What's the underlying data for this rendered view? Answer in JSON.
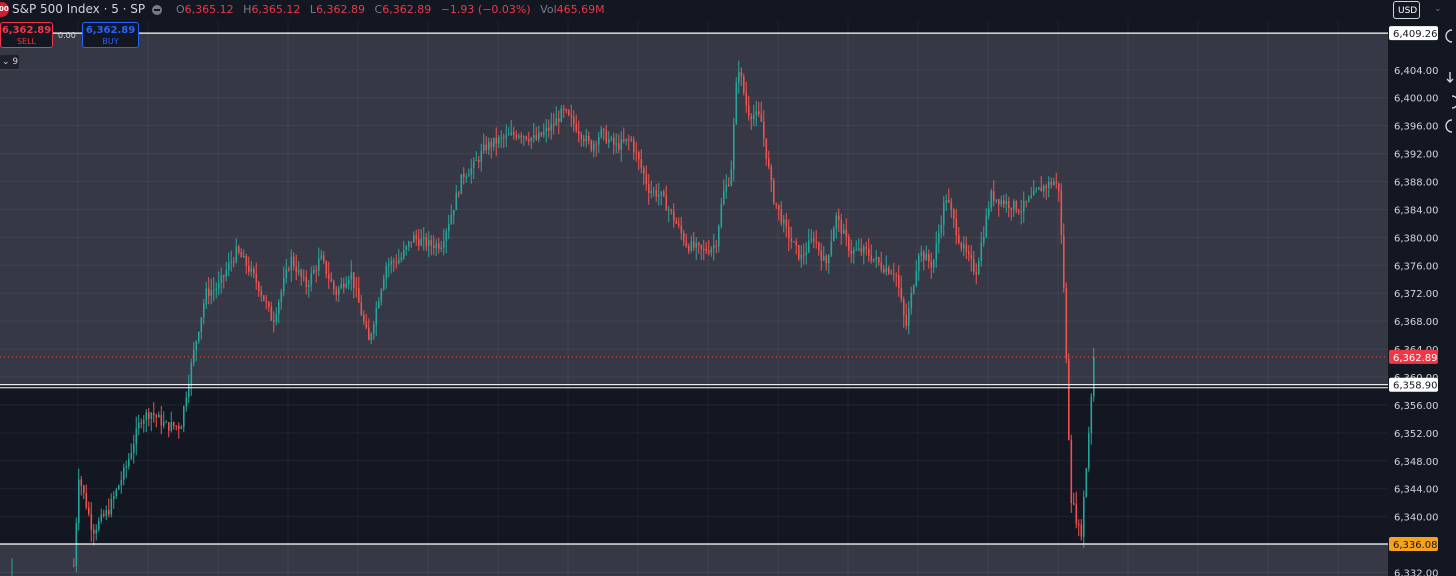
{
  "header": {
    "logo_text": "500",
    "symbol": "S&P 500 Index · 5 · SP",
    "ohlc": [
      {
        "k": "O",
        "v": "6,365.12"
      },
      {
        "k": "H",
        "v": "6,365.12"
      },
      {
        "k": "L",
        "v": "6,362.89"
      },
      {
        "k": "C",
        "v": "6,362.89"
      }
    ],
    "change": "−1.93 (−0.03%)",
    "vol_label": "Vol",
    "vol_value": "465.69M"
  },
  "trade": {
    "sell_price": "6,362.89",
    "sell_label": "SELL",
    "spread": "0.00",
    "buy_price": "6,362.89",
    "buy_label": "BUY"
  },
  "indicator_toggle": "9",
  "currency": "USD",
  "colors": {
    "up": "#26a69a",
    "down": "#ef5350",
    "bg": "#131722",
    "zone": "#434651",
    "grid": "#1e222d"
  },
  "chart_data": {
    "type": "candlestick",
    "title": "S&P 500 Index · 5 · SP",
    "xlabel": "",
    "ylabel": "",
    "ylim": [
      6331.5,
      6414
    ],
    "y_ticks": [
      "6,332.00",
      "6,336.00",
      "6,340.00",
      "6,344.00",
      "6,348.00",
      "6,352.00",
      "6,356.00",
      "6,360.00",
      "6,364.00",
      "6,368.00",
      "6,372.00",
      "6,376.00",
      "6,380.00",
      "6,384.00",
      "6,388.00",
      "6,392.00",
      "6,396.00",
      "6,400.00",
      "6,404.00",
      "6,409.26"
    ],
    "levels": [
      {
        "price": 6409.26,
        "label": "6,409.26",
        "style": "white"
      },
      {
        "price": 6358.9,
        "label": "6,358.90",
        "style": "white"
      },
      {
        "price": 6336.08,
        "label": "6,336.08",
        "style": "orange"
      },
      {
        "price": 6362.89,
        "label": "6,362.89",
        "style": "last"
      }
    ],
    "zones": [
      {
        "from": 6358.9,
        "to": 6409.26
      },
      {
        "from": 6331.5,
        "to": 6336.08
      }
    ],
    "series": [
      {
        "name": "S&P 500 Index",
        "path": [
          [
            0,
            6333
          ],
          [
            73,
            6333
          ],
          [
            78,
            6346
          ],
          [
            92,
            6338
          ],
          [
            108,
            6341
          ],
          [
            125,
            6347
          ],
          [
            140,
            6354
          ],
          [
            150,
            6355
          ],
          [
            165,
            6353
          ],
          [
            180,
            6353
          ],
          [
            187,
            6359
          ],
          [
            195,
            6365
          ],
          [
            205,
            6372
          ],
          [
            218,
            6373
          ],
          [
            228,
            6376
          ],
          [
            236,
            6378
          ],
          [
            246,
            6376
          ],
          [
            258,
            6373
          ],
          [
            272,
            6368
          ],
          [
            290,
            6377
          ],
          [
            305,
            6373
          ],
          [
            320,
            6377
          ],
          [
            335,
            6372
          ],
          [
            350,
            6375
          ],
          [
            368,
            6365
          ],
          [
            385,
            6376
          ],
          [
            400,
            6377
          ],
          [
            412,
            6380
          ],
          [
            428,
            6379
          ],
          [
            440,
            6379
          ],
          [
            452,
            6384
          ],
          [
            462,
            6389
          ],
          [
            472,
            6390
          ],
          [
            485,
            6393
          ],
          [
            500,
            6394
          ],
          [
            518,
            6395
          ],
          [
            535,
            6394
          ],
          [
            552,
            6396
          ],
          [
            562,
            6398
          ],
          [
            575,
            6396
          ],
          [
            590,
            6393
          ],
          [
            600,
            6395
          ],
          [
            615,
            6393
          ],
          [
            630,
            6394
          ],
          [
            648,
            6387
          ],
          [
            660,
            6386
          ],
          [
            672,
            6383
          ],
          [
            686,
            6379
          ],
          [
            702,
            6378
          ],
          [
            715,
            6379
          ],
          [
            722,
            6386
          ],
          [
            730,
            6389
          ],
          [
            737,
            6405
          ],
          [
            747,
            6398
          ],
          [
            760,
            6397
          ],
          [
            772,
            6386
          ],
          [
            785,
            6381
          ],
          [
            800,
            6377
          ],
          [
            813,
            6380
          ],
          [
            825,
            6376
          ],
          [
            835,
            6383
          ],
          [
            850,
            6378
          ],
          [
            865,
            6378
          ],
          [
            880,
            6376
          ],
          [
            895,
            6375
          ],
          [
            905,
            6367
          ],
          [
            918,
            6378
          ],
          [
            932,
            6376
          ],
          [
            945,
            6386
          ],
          [
            960,
            6379
          ],
          [
            975,
            6375
          ],
          [
            990,
            6386
          ],
          [
            1005,
            6385
          ],
          [
            1020,
            6384
          ],
          [
            1040,
            6387
          ],
          [
            1053,
            6388
          ],
          [
            1058,
            6387
          ],
          [
            1063,
            6373
          ],
          [
            1070,
            6343
          ],
          [
            1080,
            6337
          ],
          [
            1087,
            6350
          ],
          [
            1093,
            6363
          ]
        ]
      }
    ],
    "last_price": 6362.89
  }
}
